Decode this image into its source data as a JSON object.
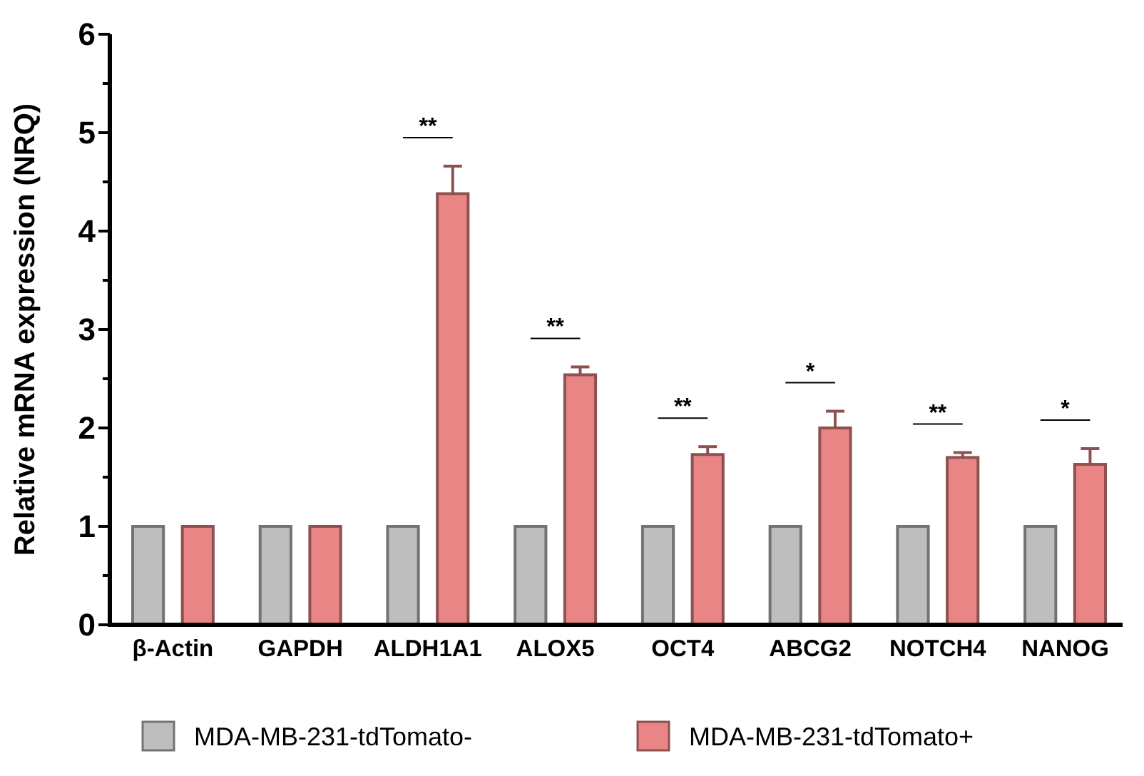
{
  "chart_data": {
    "type": "bar",
    "ylabel": "Relative mRNA expression (NRQ)",
    "categories": [
      "β-Actin",
      "GAPDH",
      "ALDH1A1",
      "ALOX5",
      "OCT4",
      "ABCG2",
      "NOTCH4",
      "NANOG"
    ],
    "series": [
      {
        "name": "MDA-MB-231-tdTomato-",
        "color": "#bebebe",
        "values": [
          1,
          1,
          1,
          1,
          1,
          1,
          1,
          1
        ]
      },
      {
        "name": "MDA-MB-231-tdTomato+",
        "color": "#e98585",
        "values": [
          1,
          1,
          4.38,
          2.54,
          1.73,
          2.0,
          1.7,
          1.63
        ],
        "errors": [
          null,
          null,
          0.28,
          0.08,
          0.08,
          0.17,
          0.05,
          0.16
        ]
      }
    ],
    "ylim": [
      0,
      6
    ],
    "yticks": [
      0,
      {
        "value": 0.5,
        "label": null
      },
      1,
      {
        "value": 1.5,
        "label": null
      },
      2,
      {
        "value": 2.5,
        "label": null
      },
      3,
      {
        "value": 3.5,
        "label": null
      },
      4,
      {
        "value": 4.5,
        "label": null
      },
      5,
      {
        "value": 5.5,
        "label": null
      },
      6
    ],
    "annotations": [
      "**",
      "**",
      "**",
      "*",
      "**",
      "*"
    ],
    "legend": "bottom",
    "grid": false
  }
}
